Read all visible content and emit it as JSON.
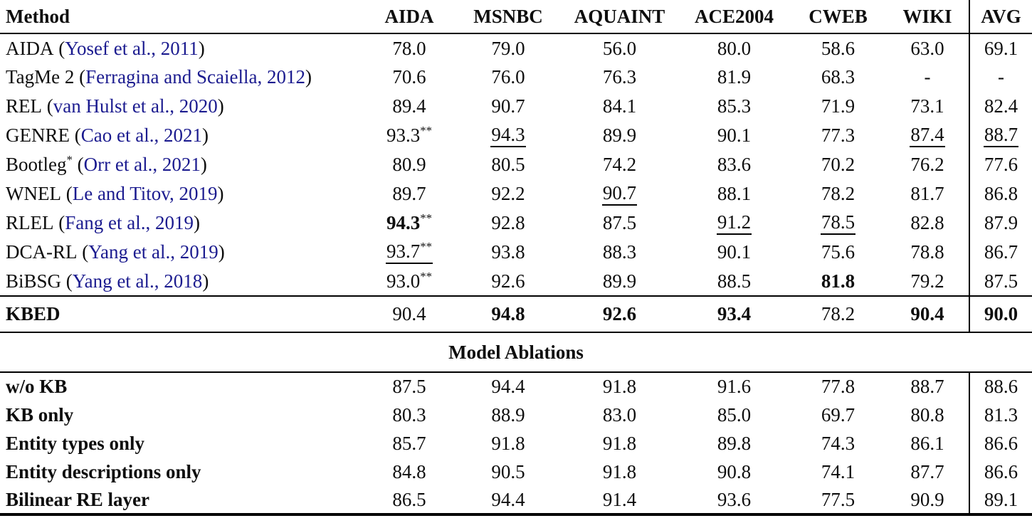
{
  "colors": {
    "citation_link": "#1b1b8f",
    "text": "#0e0e0e",
    "rule": "#000000"
  },
  "table": {
    "columns": [
      "Method",
      "AIDA",
      "MSNBC",
      "AQUAINT",
      "ACE2004",
      "CWEB",
      "WIKI",
      "AVG"
    ],
    "rows": [
      {
        "method": "AIDA",
        "method_sup": "",
        "paren_open": " (",
        "citation": "Yosef et al., 2011",
        "paren_close": ")",
        "values": [
          {
            "v": "78.0",
            "sup": ""
          },
          {
            "v": "79.0",
            "sup": ""
          },
          {
            "v": "56.0",
            "sup": ""
          },
          {
            "v": "80.0",
            "sup": ""
          },
          {
            "v": "58.6",
            "sup": ""
          },
          {
            "v": "63.0",
            "sup": ""
          },
          {
            "v": "69.1",
            "sup": ""
          }
        ]
      },
      {
        "method": "TagMe 2",
        "method_sup": "",
        "paren_open": " (",
        "citation": "Ferragina and Scaiella, 2012",
        "paren_close": ")",
        "values": [
          {
            "v": "70.6",
            "sup": ""
          },
          {
            "v": "76.0",
            "sup": ""
          },
          {
            "v": "76.3",
            "sup": ""
          },
          {
            "v": "81.9",
            "sup": ""
          },
          {
            "v": "68.3",
            "sup": ""
          },
          {
            "v": "-",
            "sup": ""
          },
          {
            "v": "-",
            "sup": ""
          }
        ]
      },
      {
        "method": "REL",
        "method_sup": "",
        "paren_open": " (",
        "citation": "van Hulst et al., 2020",
        "paren_close": ")",
        "values": [
          {
            "v": "89.4",
            "sup": ""
          },
          {
            "v": "90.7",
            "sup": ""
          },
          {
            "v": "84.1",
            "sup": ""
          },
          {
            "v": "85.3",
            "sup": ""
          },
          {
            "v": "71.9",
            "sup": ""
          },
          {
            "v": "73.1",
            "sup": ""
          },
          {
            "v": "82.4",
            "sup": ""
          }
        ]
      },
      {
        "method": "GENRE",
        "method_sup": "",
        "paren_open": " (",
        "citation": "Cao et al., 2021",
        "paren_close": ")",
        "values": [
          {
            "v": "93.3",
            "sup": "**"
          },
          {
            "v": "94.3",
            "sup": ""
          },
          {
            "v": "89.9",
            "sup": ""
          },
          {
            "v": "90.1",
            "sup": ""
          },
          {
            "v": "77.3",
            "sup": ""
          },
          {
            "v": "87.4",
            "sup": ""
          },
          {
            "v": "88.7",
            "sup": ""
          }
        ]
      },
      {
        "method": "Bootleg",
        "method_sup": "*",
        "paren_open": " (",
        "citation": "Orr et al., 2021",
        "paren_close": ")",
        "values": [
          {
            "v": "80.9",
            "sup": ""
          },
          {
            "v": "80.5",
            "sup": ""
          },
          {
            "v": "74.2",
            "sup": ""
          },
          {
            "v": "83.6",
            "sup": ""
          },
          {
            "v": "70.2",
            "sup": ""
          },
          {
            "v": "76.2",
            "sup": ""
          },
          {
            "v": "77.6",
            "sup": ""
          }
        ]
      },
      {
        "method": "WNEL",
        "method_sup": "",
        "paren_open": " (",
        "citation": "Le and Titov, 2019",
        "paren_close": ")",
        "values": [
          {
            "v": "89.7",
            "sup": ""
          },
          {
            "v": "92.2",
            "sup": ""
          },
          {
            "v": "90.7",
            "sup": ""
          },
          {
            "v": "88.1",
            "sup": ""
          },
          {
            "v": "78.2",
            "sup": ""
          },
          {
            "v": "81.7",
            "sup": ""
          },
          {
            "v": "86.8",
            "sup": ""
          }
        ]
      },
      {
        "method": "RLEL",
        "method_sup": "",
        "paren_open": " (",
        "citation": "Fang et al., 2019",
        "paren_close": ")",
        "values": [
          {
            "v": "94.3",
            "sup": "**"
          },
          {
            "v": "92.8",
            "sup": ""
          },
          {
            "v": "87.5",
            "sup": ""
          },
          {
            "v": "91.2",
            "sup": ""
          },
          {
            "v": "78.5",
            "sup": ""
          },
          {
            "v": "82.8",
            "sup": ""
          },
          {
            "v": "87.9",
            "sup": ""
          }
        ]
      },
      {
        "method": "DCA-RL",
        "method_sup": "",
        "paren_open": " (",
        "citation": "Yang et al., 2019",
        "paren_close": ")",
        "values": [
          {
            "v": "93.7",
            "sup": "**"
          },
          {
            "v": "93.8",
            "sup": ""
          },
          {
            "v": "88.3",
            "sup": ""
          },
          {
            "v": "90.1",
            "sup": ""
          },
          {
            "v": "75.6",
            "sup": ""
          },
          {
            "v": "78.8",
            "sup": ""
          },
          {
            "v": "86.7",
            "sup": ""
          }
        ]
      },
      {
        "method": "BiBSG",
        "method_sup": "",
        "paren_open": " (",
        "citation": "Yang et al., 2018",
        "paren_close": ")",
        "values": [
          {
            "v": "93.0",
            "sup": "**"
          },
          {
            "v": "92.6",
            "sup": ""
          },
          {
            "v": "89.9",
            "sup": ""
          },
          {
            "v": "88.5",
            "sup": ""
          },
          {
            "v": "81.8",
            "sup": ""
          },
          {
            "v": "79.2",
            "sup": ""
          },
          {
            "v": "87.5",
            "sup": ""
          }
        ]
      }
    ],
    "kbed": {
      "method": "KBED",
      "values": [
        {
          "v": "90.4"
        },
        {
          "v": "94.8"
        },
        {
          "v": "92.6"
        },
        {
          "v": "93.4"
        },
        {
          "v": "78.2"
        },
        {
          "v": "90.4"
        },
        {
          "v": "90.0"
        }
      ]
    },
    "section_header": "Model Ablations",
    "ablations": [
      {
        "method": "w/o KB",
        "values": [
          {
            "v": "87.5"
          },
          {
            "v": "94.4"
          },
          {
            "v": "91.8"
          },
          {
            "v": "91.6"
          },
          {
            "v": "77.8"
          },
          {
            "v": "88.7"
          },
          {
            "v": "88.6"
          }
        ]
      },
      {
        "method": "KB only",
        "values": [
          {
            "v": "80.3"
          },
          {
            "v": "88.9"
          },
          {
            "v": "83.0"
          },
          {
            "v": "85.0"
          },
          {
            "v": "69.7"
          },
          {
            "v": "80.8"
          },
          {
            "v": "81.3"
          }
        ]
      },
      {
        "method": "Entity types only",
        "values": [
          {
            "v": "85.7"
          },
          {
            "v": "91.8"
          },
          {
            "v": "91.8"
          },
          {
            "v": "89.8"
          },
          {
            "v": "74.3"
          },
          {
            "v": "86.1"
          },
          {
            "v": "86.6"
          }
        ]
      },
      {
        "method": "Entity descriptions only",
        "values": [
          {
            "v": "84.8"
          },
          {
            "v": "90.5"
          },
          {
            "v": "91.8"
          },
          {
            "v": "90.8"
          },
          {
            "v": "74.1"
          },
          {
            "v": "87.7"
          },
          {
            "v": "86.6"
          }
        ]
      },
      {
        "method": "Bilinear RE layer",
        "values": [
          {
            "v": "86.5"
          },
          {
            "v": "94.4"
          },
          {
            "v": "91.4"
          },
          {
            "v": "93.6"
          },
          {
            "v": "77.5"
          },
          {
            "v": "90.9"
          },
          {
            "v": "89.1"
          }
        ]
      }
    ]
  }
}
